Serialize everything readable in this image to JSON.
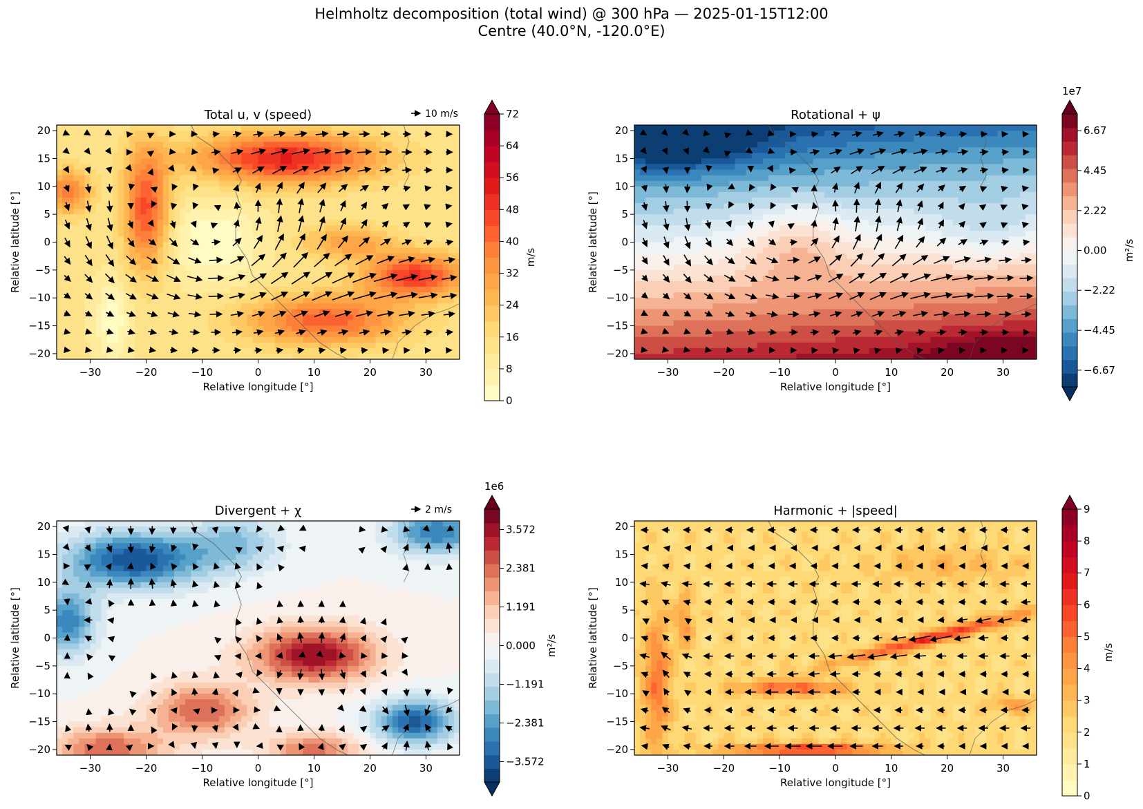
{
  "figure": {
    "title_line1": "Helmholtz decomposition (total wind) @ 300 hPa — 2025-01-15T12:00",
    "title_line2": "Centre (40.0°N, -120.0°E)"
  },
  "chart_data": [
    {
      "type": "heatmap",
      "title": "Total u, v  (speed)",
      "xlabel": "Relative longitude [°]",
      "ylabel": "Relative latitude [°]",
      "xlim": [
        -36,
        36
      ],
      "ylim": [
        -21,
        21
      ],
      "xticks": [
        -30,
        -20,
        -10,
        0,
        10,
        20,
        30
      ],
      "yticks": [
        -20,
        -15,
        -10,
        -5,
        0,
        5,
        10,
        15,
        20
      ],
      "colormap": "YlOrRd",
      "colorbar": {
        "label": "m/s",
        "ticks": [
          "0",
          "8",
          "16",
          "24",
          "32",
          "40",
          "48",
          "56",
          "64",
          "72"
        ],
        "min": 0,
        "max": 72,
        "extend": "max",
        "exponent": ""
      },
      "quiver_key": "10 m/s",
      "field": "total"
    },
    {
      "type": "heatmap",
      "title": "Rotational + ψ",
      "xlabel": "Relative longitude [°]",
      "ylabel": "Relative latitude [°]",
      "xlim": [
        -36,
        36
      ],
      "ylim": [
        -21,
        21
      ],
      "xticks": [
        -30,
        -20,
        -10,
        0,
        10,
        20,
        30
      ],
      "yticks": [
        -20,
        -15,
        -10,
        -5,
        0,
        5,
        10,
        15,
        20
      ],
      "colormap": "RdBu_r",
      "colorbar": {
        "label": "m²/s",
        "ticks": [
          "−6.67",
          "−4.45",
          "−2.22",
          "0.00",
          "2.22",
          "4.45",
          "6.67"
        ],
        "min": -7.6,
        "max": 7.6,
        "extend": "both",
        "exponent": "1e7"
      },
      "quiver_key": "",
      "field": "rotational"
    },
    {
      "type": "heatmap",
      "title": "Divergent + χ",
      "xlabel": "Relative longitude [°]",
      "ylabel": "Relative latitude [°]",
      "xlim": [
        -36,
        36
      ],
      "ylim": [
        -21,
        21
      ],
      "xticks": [
        -30,
        -20,
        -10,
        0,
        10,
        20,
        30
      ],
      "yticks": [
        -20,
        -15,
        -10,
        -5,
        0,
        5,
        10,
        15,
        20
      ],
      "colormap": "RdBu_r",
      "colorbar": {
        "label": "m²/s",
        "ticks": [
          "−3.572",
          "−2.381",
          "−1.191",
          "0.000",
          "1.191",
          "2.381",
          "3.572"
        ],
        "min": -4.2,
        "max": 4.2,
        "extend": "both",
        "exponent": "1e6"
      },
      "quiver_key": "2 m/s",
      "field": "divergent"
    },
    {
      "type": "heatmap",
      "title": "Harmonic + |speed|",
      "xlabel": "Relative longitude [°]",
      "ylabel": "Relative latitude [°]",
      "xlim": [
        -36,
        36
      ],
      "ylim": [
        -21,
        21
      ],
      "xticks": [
        -30,
        -20,
        -10,
        0,
        10,
        20,
        30
      ],
      "yticks": [
        -20,
        -15,
        -10,
        -5,
        0,
        5,
        10,
        15,
        20
      ],
      "colormap": "YlOrRd",
      "colorbar": {
        "label": "m/s",
        "ticks": [
          "0",
          "1",
          "2",
          "3",
          "4",
          "5",
          "6",
          "7",
          "8",
          "9"
        ],
        "min": 0,
        "max": 9,
        "extend": "max",
        "exponent": ""
      },
      "quiver_key": "",
      "field": "harmonic"
    }
  ]
}
